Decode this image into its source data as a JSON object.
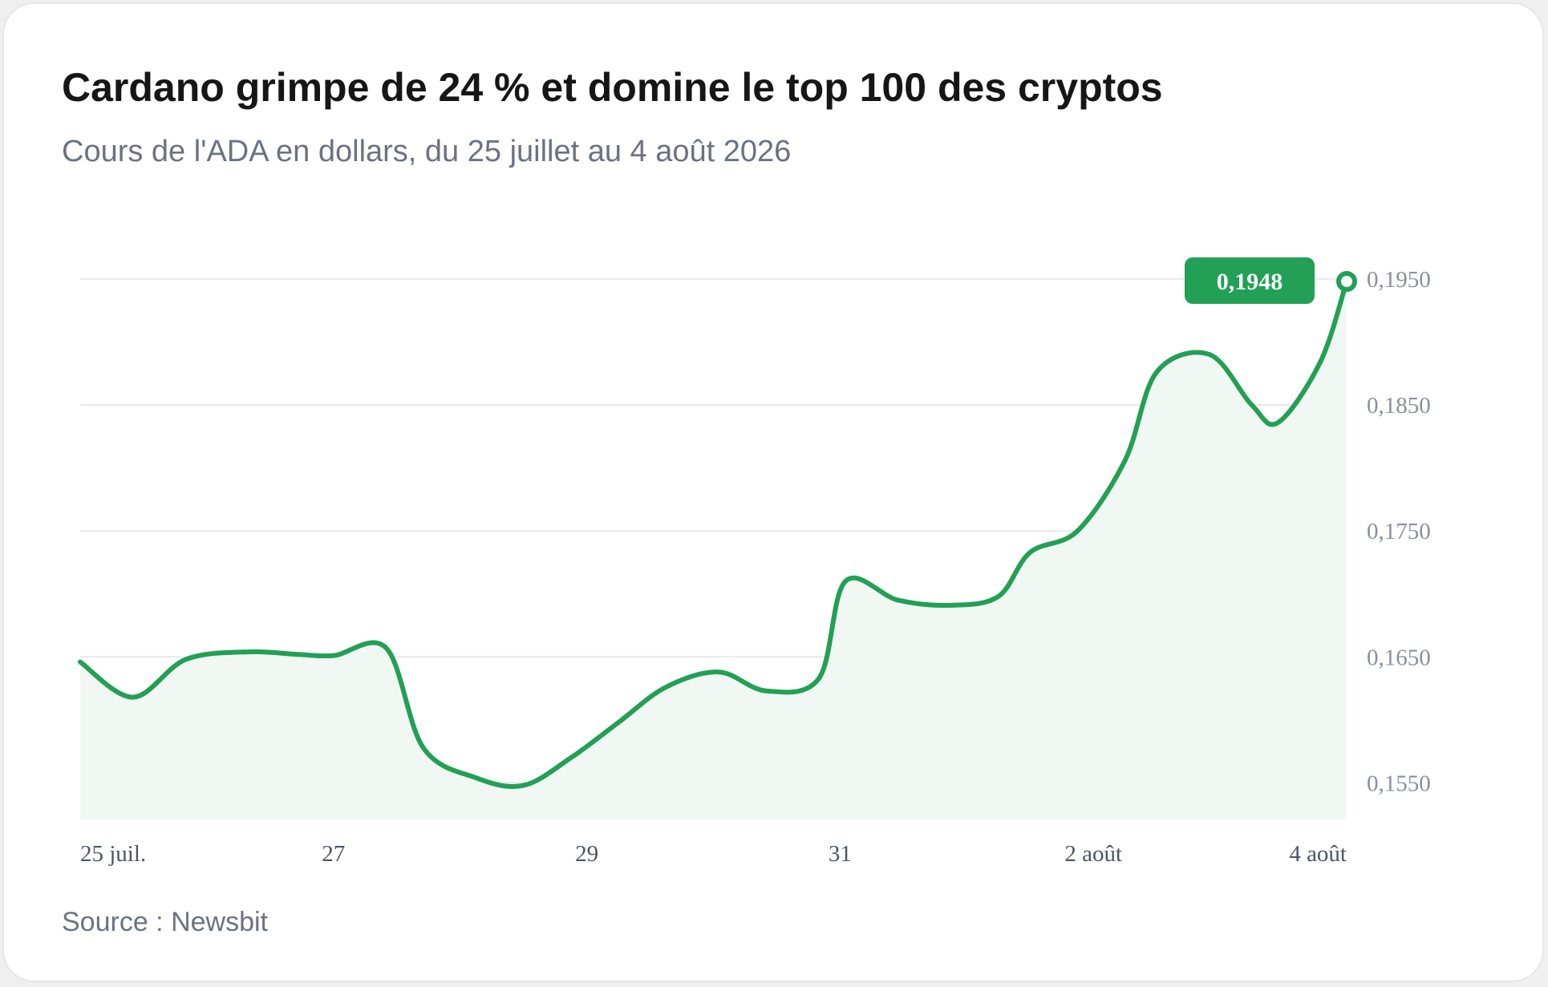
{
  "header": {
    "title": "Cardano grimpe de 24 % et domine le top 100 des cryptos",
    "subtitle": "Cours de l'ADA en dollars, du 25 juillet au 4 août 2026"
  },
  "footer": {
    "source": "Source : Newsbit"
  },
  "colors": {
    "line": "#22a055",
    "area": "#f1f8f3",
    "grid": "#e8e8e8",
    "badge": "#22a055"
  },
  "chart_data": {
    "type": "area",
    "title": "Cardano grimpe de 24 % et domine le top 100 des cryptos",
    "subtitle": "Cours de l'ADA en dollars, du 25 juillet au 4 août 2026",
    "xlabel": "",
    "ylabel": "",
    "x_domain": [
      "2026-07-25",
      "2026-08-04"
    ],
    "ylim": [
      0.1521,
      0.1955
    ],
    "y_ticks": [
      {
        "value": 0.195,
        "label": "0,1950"
      },
      {
        "value": 0.185,
        "label": "0,1850"
      },
      {
        "value": 0.175,
        "label": "0,1750"
      },
      {
        "value": 0.165,
        "label": "0,1650"
      },
      {
        "value": 0.155,
        "label": "0,1550"
      }
    ],
    "x_ticks": [
      {
        "value": "2026-07-25",
        "label": "25 juil."
      },
      {
        "value": "2026-07-27",
        "label": "27"
      },
      {
        "value": "2026-07-29",
        "label": "29"
      },
      {
        "value": "2026-07-31",
        "label": "31"
      },
      {
        "value": "2026-08-02",
        "label": "2 août"
      },
      {
        "value": "2026-08-04",
        "label": "4 août"
      }
    ],
    "grid": true,
    "series": [
      {
        "points": [
          {
            "x": "2026-07-25T00:00",
            "y": 0.1646
          },
          {
            "x": "2026-07-25T10:00",
            "y": 0.1618
          },
          {
            "x": "2026-07-25T20:00",
            "y": 0.1648
          },
          {
            "x": "2026-07-26T08:00",
            "y": 0.1654
          },
          {
            "x": "2026-07-26T17:00",
            "y": 0.1652
          },
          {
            "x": "2026-07-27T00:00",
            "y": 0.1651
          },
          {
            "x": "2026-07-27T10:00",
            "y": 0.1657
          },
          {
            "x": "2026-07-27T17:00",
            "y": 0.1578
          },
          {
            "x": "2026-07-28T03:00",
            "y": 0.1554
          },
          {
            "x": "2026-07-28T12:00",
            "y": 0.1548
          },
          {
            "x": "2026-07-28T21:00",
            "y": 0.157
          },
          {
            "x": "2026-07-29T06:00",
            "y": 0.1598
          },
          {
            "x": "2026-07-29T15:00",
            "y": 0.1626
          },
          {
            "x": "2026-07-30T01:00",
            "y": 0.1638
          },
          {
            "x": "2026-07-30T10:00",
            "y": 0.1623
          },
          {
            "x": "2026-07-30T20:00",
            "y": 0.1633
          },
          {
            "x": "2026-07-31T01:00",
            "y": 0.171
          },
          {
            "x": "2026-07-31T11:00",
            "y": 0.1695
          },
          {
            "x": "2026-07-31T21:00",
            "y": 0.1691
          },
          {
            "x": "2026-08-01T06:00",
            "y": 0.1698
          },
          {
            "x": "2026-08-01T12:00",
            "y": 0.1733
          },
          {
            "x": "2026-08-01T21:00",
            "y": 0.175
          },
          {
            "x": "2026-08-02T06:00",
            "y": 0.1806
          },
          {
            "x": "2026-08-02T12:00",
            "y": 0.1876
          },
          {
            "x": "2026-08-02T22:00",
            "y": 0.189
          },
          {
            "x": "2026-08-03T06:00",
            "y": 0.185
          },
          {
            "x": "2026-08-03T11:00",
            "y": 0.1836
          },
          {
            "x": "2026-08-03T19:00",
            "y": 0.1884
          },
          {
            "x": "2026-08-04T00:00",
            "y": 0.1948
          }
        ]
      }
    ],
    "annotation": {
      "label": "0,1948",
      "value": 0.1948
    }
  }
}
